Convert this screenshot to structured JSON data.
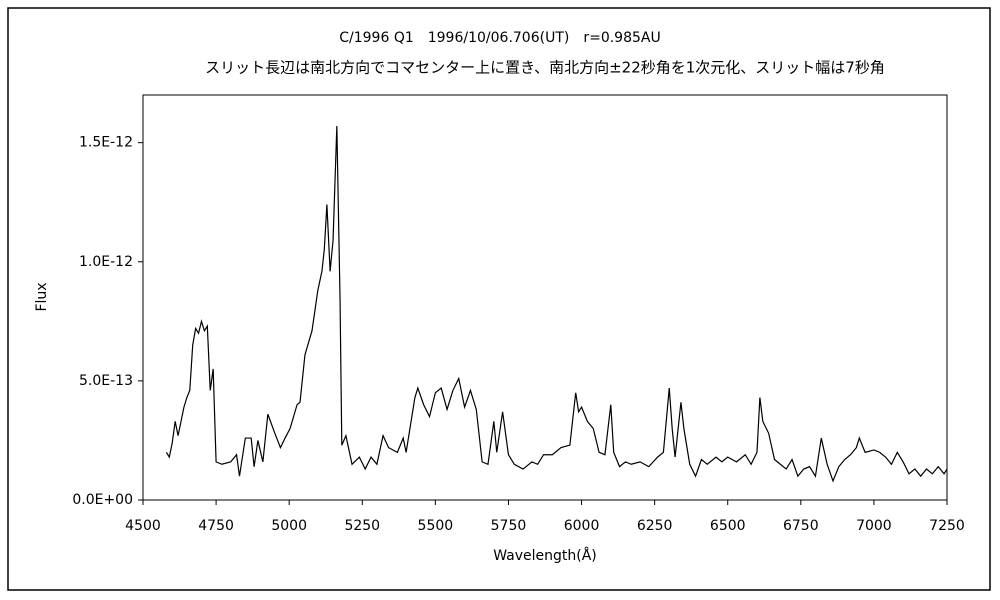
{
  "chart_data": {
    "type": "line",
    "title": "C/1996 Q1　1996/10/06.706(UT)　r=0.985AU",
    "subtitle": "スリット長辺は南北方向でコマセンター上に置き、南北方向±22秒角を1次元化、スリット幅は7秒角",
    "x_label": "Wavelength(Å)",
    "y_label": "Flux",
    "color": "#000000",
    "xlim": [
      4500,
      7250
    ],
    "xticks": [
      4500,
      4750,
      5000,
      5250,
      5500,
      5750,
      6000,
      6250,
      6500,
      6750,
      7000,
      7250
    ],
    "ylim": [
      0,
      1.7e-12
    ],
    "yticks": [
      {
        "value": 0,
        "label": "0.0E+00"
      },
      {
        "value": 5e-13,
        "label": "5.0E-13"
      },
      {
        "value": 1e-12,
        "label": "1.0E-12"
      },
      {
        "value": 1.5e-12,
        "label": "1.5E-12"
      }
    ],
    "x": [
      4580,
      4590,
      4600,
      4610,
      4620,
      4630,
      4640,
      4650,
      4660,
      4670,
      4680,
      4690,
      4700,
      4710,
      4720,
      4730,
      4740,
      4750,
      4770,
      4800,
      4820,
      4830,
      4850,
      4870,
      4880,
      4893,
      4910,
      4927,
      4951,
      4970,
      4986,
      5003,
      5027,
      5037,
      5054,
      5078,
      5098,
      5112,
      5120,
      5129,
      5140,
      5150,
      5163,
      5174,
      5180,
      5194,
      5215,
      5240,
      5260,
      5280,
      5300,
      5321,
      5340,
      5370,
      5390,
      5400,
      5430,
      5440,
      5460,
      5480,
      5500,
      5520,
      5540,
      5560,
      5580,
      5600,
      5620,
      5640,
      5660,
      5680,
      5700,
      5710,
      5730,
      5750,
      5770,
      5800,
      5830,
      5850,
      5870,
      5900,
      5930,
      5960,
      5980,
      5990,
      6000,
      6020,
      6040,
      6060,
      6080,
      6100,
      6110,
      6130,
      6150,
      6170,
      6200,
      6230,
      6260,
      6280,
      6300,
      6310,
      6320,
      6340,
      6350,
      6370,
      6390,
      6410,
      6430,
      6460,
      6480,
      6500,
      6530,
      6560,
      6580,
      6600,
      6610,
      6620,
      6640,
      6660,
      6680,
      6700,
      6720,
      6740,
      6760,
      6780,
      6800,
      6820,
      6840,
      6860,
      6880,
      6900,
      6920,
      6940,
      6950,
      6970,
      7000,
      7020,
      7040,
      7060,
      7080,
      7100,
      7120,
      7140,
      7160,
      7180,
      7200,
      7220,
      7240,
      7250
    ],
    "values": [
      2e-13,
      1.8e-13,
      2.4e-13,
      3.3e-13,
      2.7e-13,
      3.3e-13,
      3.9e-13,
      4.3e-13,
      4.6e-13,
      6.5e-13,
      7.2e-13,
      7e-13,
      7.5e-13,
      7.1e-13,
      7.3e-13,
      4.6e-13,
      5.5e-13,
      1.6e-13,
      1.5e-13,
      1.6e-13,
      1.9e-13,
      1e-13,
      2.6e-13,
      2.6e-13,
      1.4e-13,
      2.5e-13,
      1.6e-13,
      3.6e-13,
      2.8e-13,
      2.2e-13,
      2.6e-13,
      3e-13,
      4e-13,
      4.1e-13,
      6.1e-13,
      7.1e-13,
      8.8e-13,
      9.6e-13,
      1.05e-12,
      1.24e-12,
      9.6e-13,
      1.09e-12,
      1.57e-12,
      8.4e-13,
      2.3e-13,
      2.7e-13,
      1.5e-13,
      1.8e-13,
      1.3e-13,
      1.8e-13,
      1.5e-13,
      2.7e-13,
      2.2e-13,
      2e-13,
      2.6e-13,
      2e-13,
      4.3e-13,
      4.7e-13,
      4e-13,
      3.5e-13,
      4.5e-13,
      4.7e-13,
      3.8e-13,
      4.6e-13,
      5.1e-13,
      3.9e-13,
      4.6e-13,
      3.8e-13,
      1.6e-13,
      1.5e-13,
      3.3e-13,
      2e-13,
      3.7e-13,
      1.9e-13,
      1.5e-13,
      1.3e-13,
      1.6e-13,
      1.5e-13,
      1.9e-13,
      1.9e-13,
      2.2e-13,
      2.3e-13,
      4.5e-13,
      3.7e-13,
      3.9e-13,
      3.3e-13,
      3e-13,
      2e-13,
      1.9e-13,
      4e-13,
      2e-13,
      1.4e-13,
      1.6e-13,
      1.5e-13,
      1.6e-13,
      1.4e-13,
      1.8e-13,
      2e-13,
      4.7e-13,
      3e-13,
      1.8e-13,
      4.1e-13,
      3e-13,
      1.5e-13,
      1e-13,
      1.7e-13,
      1.5e-13,
      1.8e-13,
      1.6e-13,
      1.8e-13,
      1.6e-13,
      1.9e-13,
      1.5e-13,
      2e-13,
      4.3e-13,
      3.3e-13,
      2.8e-13,
      1.7e-13,
      1.5e-13,
      1.3e-13,
      1.7e-13,
      1e-13,
      1.3e-13,
      1.4e-13,
      1e-13,
      2.6e-13,
      1.5e-13,
      8e-14,
      1.4e-13,
      1.7e-13,
      1.9e-13,
      2.2e-13,
      2.6e-13,
      2e-13,
      2.1e-13,
      2e-13,
      1.8e-13,
      1.5e-13,
      2e-13,
      1.6e-13,
      1.1e-13,
      1.3e-13,
      1e-13,
      1.3e-13,
      1.1e-13,
      1.4e-13,
      1.1e-13,
      1.3e-13
    ]
  }
}
